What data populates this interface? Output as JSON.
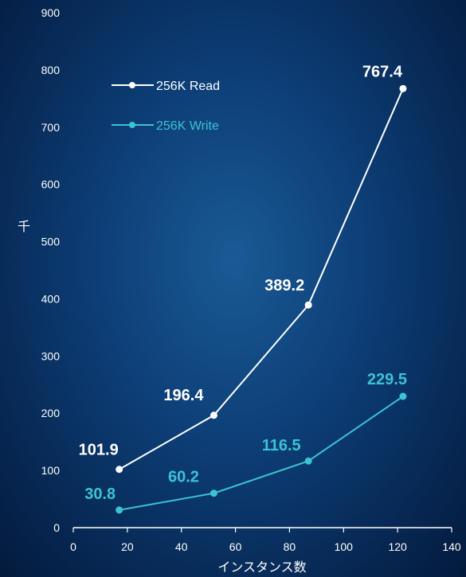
{
  "chart_data": {
    "type": "line",
    "title": "",
    "xlabel": "インスタンス数",
    "ylabel": "千",
    "xlim": [
      0,
      140
    ],
    "ylim": [
      0,
      900
    ],
    "x_ticks": [
      "0",
      "20",
      "40",
      "60",
      "80",
      "100",
      "120",
      "140"
    ],
    "y_ticks": [
      "0",
      "100",
      "200",
      "300",
      "400",
      "500",
      "600",
      "700",
      "800",
      "900"
    ],
    "grid": false,
    "legend_position": "top-left",
    "series": [
      {
        "name": "256K Read",
        "color": "#ffffff",
        "x": [
          17,
          52,
          87,
          122
        ],
        "values": [
          101.9,
          196.4,
          389.2,
          767.4
        ],
        "labels": [
          "101.9",
          "196.4",
          "389.2",
          "767.4"
        ]
      },
      {
        "name": "256K Write",
        "color": "#3cc3d2",
        "x": [
          17,
          52,
          87,
          122
        ],
        "values": [
          30.8,
          60.2,
          116.5,
          229.5
        ],
        "labels": [
          "30.8",
          "60.2",
          "116.5",
          "229.5"
        ]
      }
    ]
  }
}
